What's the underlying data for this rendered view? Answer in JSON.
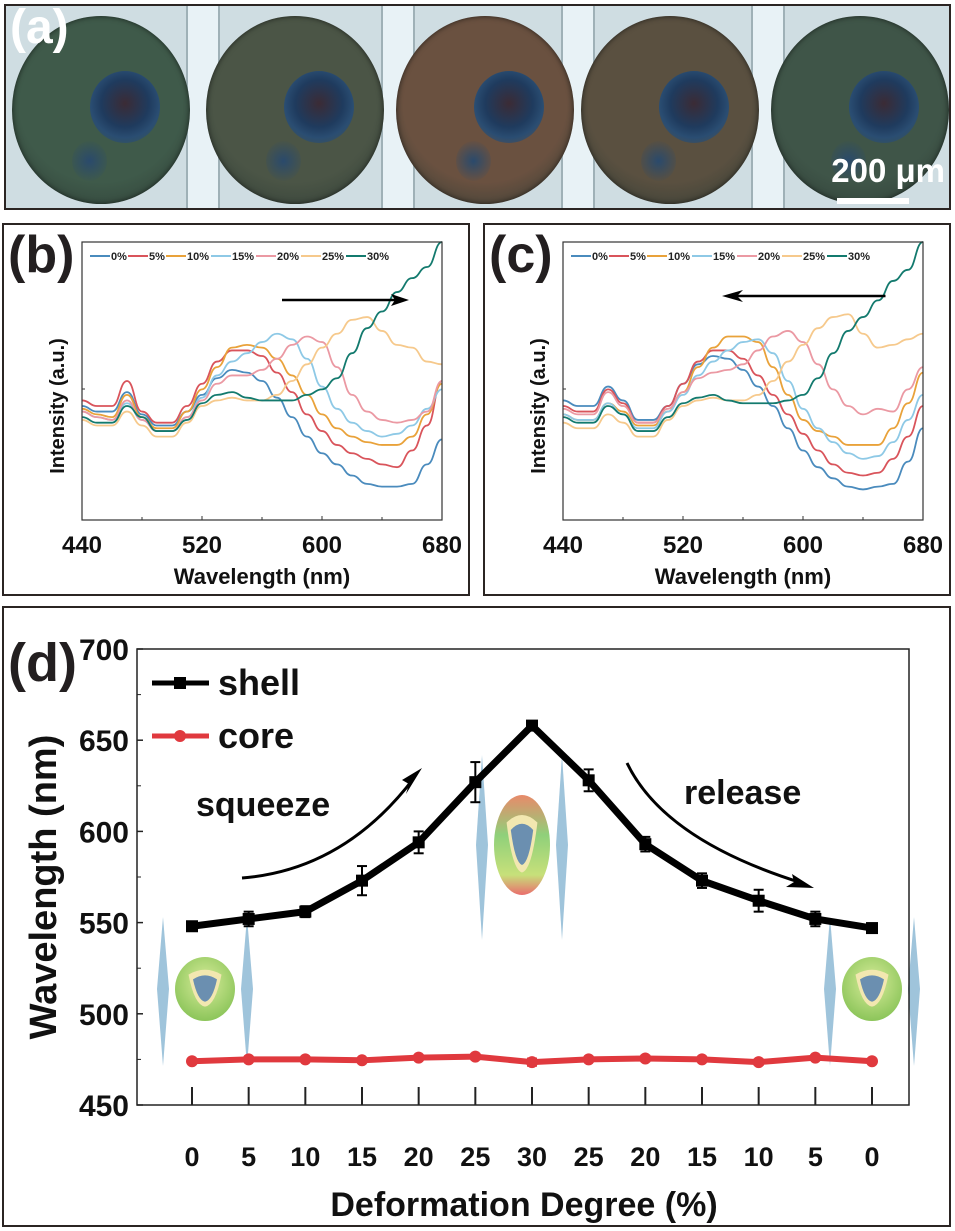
{
  "figure": {
    "panel_labels": {
      "a": "(a)",
      "b": "(b)",
      "c": "(c)",
      "d": "(d)"
    },
    "panel_a": {
      "description": "optical micrographs of five droplets",
      "scale_bar_label": "200 μm",
      "droplet_tints": [
        "#3f5a4a",
        "#4b5546",
        "#6a5140",
        "#5a5040",
        "#3f5548"
      ]
    }
  },
  "chart_data": [
    {
      "id": "b",
      "type": "line",
      "title": "",
      "xlabel": "Wavelength (nm)",
      "ylabel": "Intensity (a.u.)",
      "xlim": [
        440,
        680
      ],
      "ylim": [
        0,
        1
      ],
      "xticks": [
        440,
        520,
        600,
        680
      ],
      "xtick_labels": [
        "440",
        "520",
        "600",
        "680"
      ],
      "legend_position": "top",
      "annotation": "arrow pointing right (red-shift during squeeze)",
      "arrow_direction": "right",
      "x": [
        440,
        450,
        460,
        470,
        480,
        490,
        500,
        510,
        520,
        530,
        540,
        550,
        560,
        570,
        580,
        590,
        600,
        610,
        620,
        630,
        640,
        650,
        660,
        670,
        680
      ],
      "series": [
        {
          "name": "0%",
          "color": "#4a8bbd",
          "values": [
            0.41,
            0.39,
            0.39,
            0.46,
            0.38,
            0.34,
            0.34,
            0.39,
            0.45,
            0.51,
            0.54,
            0.53,
            0.5,
            0.44,
            0.37,
            0.3,
            0.24,
            0.2,
            0.16,
            0.13,
            0.12,
            0.12,
            0.13,
            0.2,
            0.29
          ]
        },
        {
          "name": "5%",
          "color": "#d9545b",
          "values": [
            0.43,
            0.41,
            0.41,
            0.5,
            0.39,
            0.35,
            0.35,
            0.41,
            0.49,
            0.57,
            0.61,
            0.61,
            0.59,
            0.53,
            0.46,
            0.38,
            0.32,
            0.27,
            0.24,
            0.22,
            0.2,
            0.19,
            0.25,
            0.34,
            0.5
          ]
        },
        {
          "name": "10%",
          "color": "#e9a23a",
          "values": [
            0.4,
            0.38,
            0.37,
            0.45,
            0.37,
            0.33,
            0.33,
            0.39,
            0.47,
            0.55,
            0.62,
            0.63,
            0.62,
            0.58,
            0.52,
            0.45,
            0.38,
            0.33,
            0.3,
            0.28,
            0.27,
            0.27,
            0.3,
            0.38,
            0.49
          ]
        },
        {
          "name": "15%",
          "color": "#8ec9e6",
          "values": [
            0.39,
            0.37,
            0.36,
            0.42,
            0.36,
            0.32,
            0.32,
            0.37,
            0.44,
            0.52,
            0.57,
            0.6,
            0.64,
            0.67,
            0.65,
            0.58,
            0.48,
            0.4,
            0.35,
            0.32,
            0.3,
            0.31,
            0.34,
            0.4,
            0.47
          ]
        },
        {
          "name": "20%",
          "color": "#eb99a3",
          "values": [
            0.39,
            0.37,
            0.36,
            0.43,
            0.36,
            0.32,
            0.32,
            0.37,
            0.43,
            0.49,
            0.52,
            0.52,
            0.54,
            0.58,
            0.63,
            0.66,
            0.64,
            0.55,
            0.45,
            0.39,
            0.36,
            0.35,
            0.36,
            0.39,
            0.5
          ]
        },
        {
          "name": "25%",
          "color": "#f6c98c",
          "values": [
            0.36,
            0.34,
            0.34,
            0.39,
            0.34,
            0.3,
            0.3,
            0.35,
            0.41,
            0.43,
            0.44,
            0.43,
            0.43,
            0.45,
            0.5,
            0.56,
            0.62,
            0.67,
            0.72,
            0.73,
            0.68,
            0.63,
            0.62,
            0.57,
            0.56
          ]
        },
        {
          "name": "30%",
          "color": "#137a6e",
          "values": [
            0.37,
            0.35,
            0.35,
            0.41,
            0.37,
            0.32,
            0.32,
            0.36,
            0.42,
            0.45,
            0.46,
            0.44,
            0.43,
            0.43,
            0.43,
            0.45,
            0.47,
            0.51,
            0.6,
            0.69,
            0.75,
            0.82,
            0.87,
            0.91,
            1.0
          ]
        }
      ]
    },
    {
      "id": "c",
      "type": "line",
      "title": "",
      "xlabel": "Wavelength (nm)",
      "ylabel": "Intensity (a.u.)",
      "xlim": [
        440,
        680
      ],
      "ylim": [
        0,
        1
      ],
      "xticks": [
        440,
        520,
        600,
        680
      ],
      "xtick_labels": [
        "440",
        "520",
        "600",
        "680"
      ],
      "legend_position": "top",
      "annotation": "arrow pointing left (blue-shift during release)",
      "arrow_direction": "left",
      "x": [
        440,
        450,
        460,
        470,
        480,
        490,
        500,
        510,
        520,
        530,
        540,
        550,
        560,
        570,
        580,
        590,
        600,
        610,
        620,
        630,
        640,
        650,
        660,
        670,
        680
      ],
      "series": [
        {
          "name": "0%",
          "color": "#4a8bbd",
          "values": [
            0.43,
            0.41,
            0.41,
            0.48,
            0.43,
            0.36,
            0.36,
            0.41,
            0.49,
            0.56,
            0.59,
            0.58,
            0.54,
            0.48,
            0.41,
            0.33,
            0.25,
            0.19,
            0.15,
            0.12,
            0.11,
            0.12,
            0.13,
            0.21,
            0.33
          ]
        },
        {
          "name": "5%",
          "color": "#d9545b",
          "values": [
            0.41,
            0.39,
            0.39,
            0.47,
            0.42,
            0.35,
            0.35,
            0.41,
            0.49,
            0.57,
            0.61,
            0.61,
            0.58,
            0.52,
            0.45,
            0.38,
            0.31,
            0.25,
            0.2,
            0.17,
            0.16,
            0.17,
            0.22,
            0.3,
            0.41
          ]
        },
        {
          "name": "10%",
          "color": "#e9a23a",
          "values": [
            0.38,
            0.36,
            0.36,
            0.42,
            0.39,
            0.34,
            0.34,
            0.39,
            0.46,
            0.55,
            0.62,
            0.66,
            0.66,
            0.64,
            0.55,
            0.45,
            0.36,
            0.32,
            0.3,
            0.27,
            0.27,
            0.27,
            0.33,
            0.42,
            0.53
          ]
        },
        {
          "name": "15%",
          "color": "#8ec9e6",
          "values": [
            0.38,
            0.36,
            0.36,
            0.42,
            0.38,
            0.33,
            0.33,
            0.39,
            0.45,
            0.52,
            0.57,
            0.61,
            0.64,
            0.65,
            0.6,
            0.5,
            0.4,
            0.33,
            0.28,
            0.24,
            0.22,
            0.23,
            0.28,
            0.36,
            0.45
          ]
        },
        {
          "name": "20%",
          "color": "#eb99a3",
          "values": [
            0.4,
            0.38,
            0.38,
            0.46,
            0.41,
            0.35,
            0.35,
            0.4,
            0.46,
            0.51,
            0.53,
            0.54,
            0.56,
            0.61,
            0.66,
            0.68,
            0.64,
            0.56,
            0.47,
            0.41,
            0.38,
            0.4,
            0.39,
            0.47,
            0.55
          ]
        },
        {
          "name": "25%",
          "color": "#f6c98c",
          "values": [
            0.35,
            0.33,
            0.33,
            0.38,
            0.35,
            0.3,
            0.3,
            0.36,
            0.41,
            0.43,
            0.44,
            0.43,
            0.43,
            0.45,
            0.5,
            0.57,
            0.63,
            0.69,
            0.73,
            0.74,
            0.67,
            0.62,
            0.63,
            0.65,
            0.67
          ]
        },
        {
          "name": "30%",
          "color": "#137a6e",
          "values": [
            0.37,
            0.35,
            0.35,
            0.41,
            0.38,
            0.32,
            0.32,
            0.37,
            0.42,
            0.44,
            0.45,
            0.43,
            0.42,
            0.42,
            0.42,
            0.43,
            0.45,
            0.51,
            0.6,
            0.68,
            0.73,
            0.79,
            0.86,
            0.9,
            1.0
          ]
        }
      ]
    },
    {
      "id": "d",
      "type": "line",
      "title": "",
      "xlabel": "Deformation Degree (%)",
      "ylabel": "Wavelength (nm)",
      "ylim": [
        450,
        700
      ],
      "yticks": [
        450,
        500,
        550,
        600,
        650,
        700
      ],
      "ytick_labels": [
        "450",
        "500",
        "550",
        "600",
        "650",
        "700"
      ],
      "categories": [
        "0",
        "5",
        "10",
        "15",
        "20",
        "25",
        "30",
        "25",
        "20",
        "15",
        "10",
        "5",
        "0"
      ],
      "legend_position": "top-left",
      "annotations": [
        "squeeze",
        "release"
      ],
      "series": [
        {
          "name": "shell",
          "color": "#000000",
          "marker": "square",
          "values": [
            548,
            552,
            556,
            573,
            594,
            627,
            658,
            628,
            593,
            573,
            562,
            552,
            547
          ],
          "errors": [
            2,
            4,
            3,
            8,
            6,
            11,
            2,
            6,
            4,
            4,
            6,
            4,
            2
          ]
        },
        {
          "name": "core",
          "color": "#e0393e",
          "marker": "circle",
          "values": [
            474,
            475,
            475,
            474.5,
            476,
            476.5,
            473.5,
            475,
            475.5,
            475,
            473.5,
            476,
            474
          ],
          "errors": [
            0.5,
            1,
            0.5,
            0.5,
            1,
            1.5,
            2,
            1,
            1.5,
            1,
            1.5,
            0.5,
            0.5
          ]
        }
      ]
    }
  ]
}
